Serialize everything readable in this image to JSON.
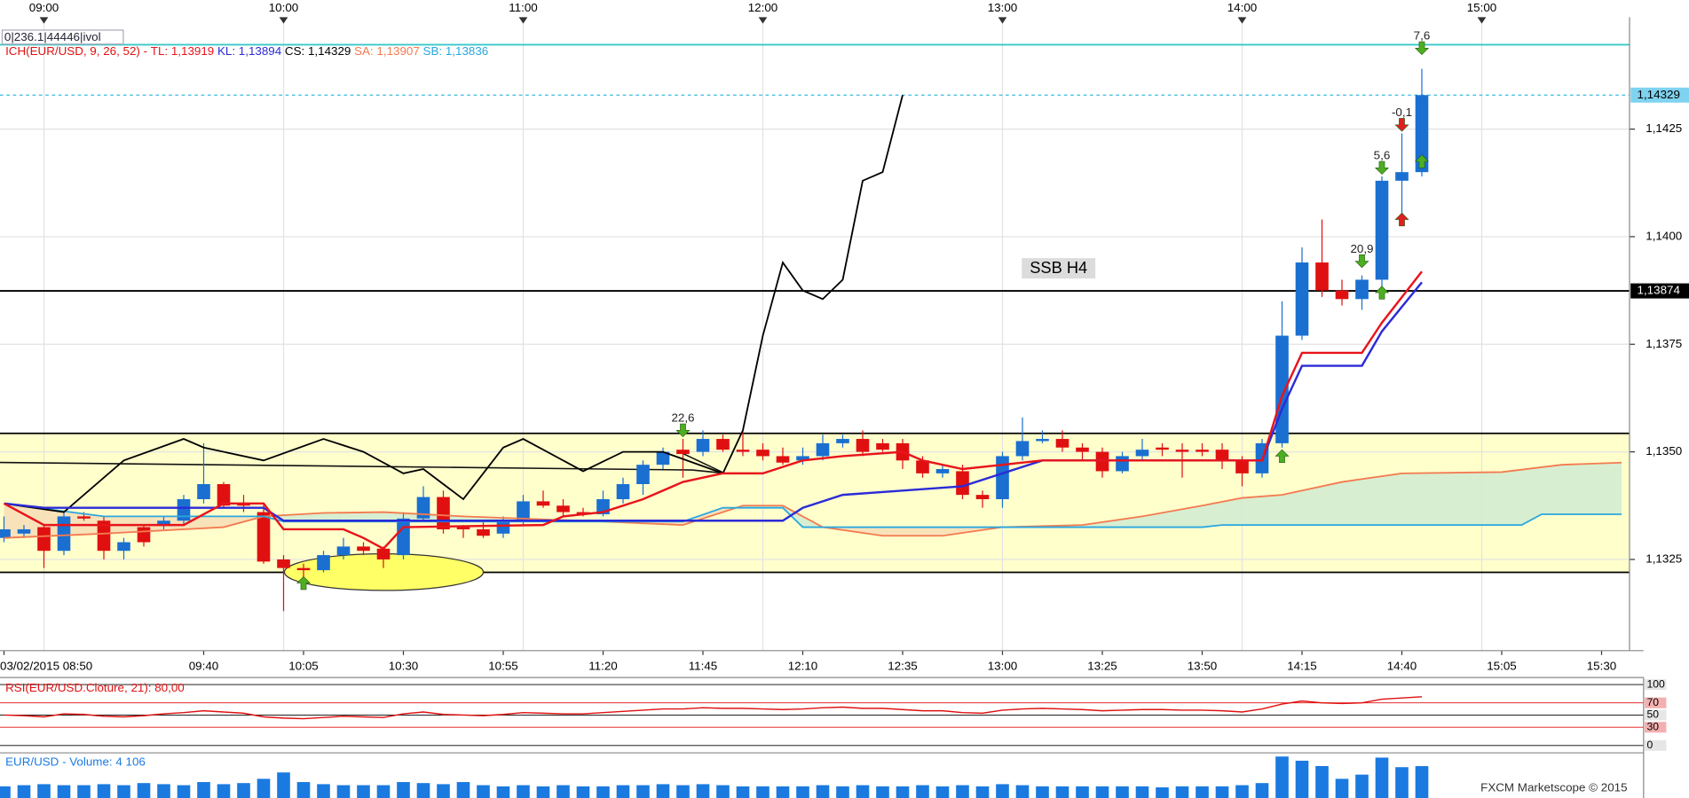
{
  "chart_data": [
    {
      "type": "candlestick",
      "overlay_text": "0|236.1|44446|ivol",
      "header": "ICH(EUR/USD, 9, 26, 52) -",
      "indicator_labels": [
        {
          "text": "TL: 1,13919",
          "color": "#e8141b"
        },
        {
          "text": "KL: 1,13894",
          "color": "#2b2bd8"
        },
        {
          "text": "CS: 1,14329",
          "color": "#000000"
        },
        {
          "text": "SA: 1,13907",
          "color": "#f47a50"
        },
        {
          "text": "SB: 1,13836",
          "color": "#2aa7e0"
        }
      ],
      "annotation": "SSB H4",
      "footer": "FXCM Marketscope © 2015",
      "xlim": [
        -0.2,
        81.4
      ],
      "xticks": [
        {
          "value": 0,
          "label": "03/02/2015 08:50"
        },
        {
          "value": 10,
          "label": "09:40"
        },
        {
          "value": 15,
          "label": "10:05"
        },
        {
          "value": 20,
          "label": "10:30"
        },
        {
          "value": 25,
          "label": "10:55"
        },
        {
          "value": 30,
          "label": "11:20"
        },
        {
          "value": 35,
          "label": "11:45"
        },
        {
          "value": 40,
          "label": "12:10"
        },
        {
          "value": 45,
          "label": "12:35"
        },
        {
          "value": 50,
          "label": "13:00"
        },
        {
          "value": 55,
          "label": "13:25"
        },
        {
          "value": 60,
          "label": "13:50"
        },
        {
          "value": 65,
          "label": "14:15"
        },
        {
          "value": 70,
          "label": "14:40"
        },
        {
          "value": 75,
          "label": "15:05"
        },
        {
          "value": 80,
          "label": "15:30"
        }
      ],
      "x2ticks": [
        {
          "value": 2,
          "label": "09:00"
        },
        {
          "value": 14,
          "label": "10:00"
        },
        {
          "value": 26,
          "label": "11:00"
        },
        {
          "value": 38,
          "label": "12:00"
        },
        {
          "value": 50,
          "label": "13:00"
        },
        {
          "value": 62,
          "label": "14:00"
        },
        {
          "value": 74,
          "label": "15:00"
        }
      ],
      "ylim": [
        1.13038,
        1.1451
      ],
      "yticks": [
        {
          "value": 1.1325,
          "label": "1,1325"
        },
        {
          "value": 1.135,
          "label": "1,1350"
        },
        {
          "value": 1.1375,
          "label": "1,1375"
        },
        {
          "value": 1.14,
          "label": "1,1400"
        },
        {
          "value": 1.1425,
          "label": "1,1425"
        }
      ],
      "grid": true,
      "up_color": "#1a6fd1",
      "down_color": "#e01010",
      "open": [
        1.133,
        1.1331,
        1.13325,
        1.1327,
        1.1335,
        1.1334,
        1.1327,
        1.13325,
        1.1333,
        1.1334,
        1.1339,
        1.13425,
        1.1338,
        1.1336,
        1.1325,
        1.1323,
        1.13225,
        1.1326,
        1.1328,
        1.13275,
        1.1326,
        1.13345,
        1.13395,
        1.13325,
        1.1332,
        1.1331,
        1.1334,
        1.13385,
        1.13375,
        1.1336,
        1.13355,
        1.1339,
        1.13425,
        1.1347,
        1.13505,
        1.135,
        1.1353,
        1.13505,
        1.13505,
        1.1349,
        1.1348,
        1.1349,
        1.1352,
        1.1353,
        1.1352,
        1.1352,
        1.1348,
        1.1345,
        1.13455,
        1.134,
        1.1339,
        1.1349,
        1.13525,
        1.1353,
        1.1351,
        1.135,
        1.13455,
        1.1349,
        1.1351,
        1.13505,
        1.13505,
        1.13505,
        1.1348,
        1.1345,
        1.1352,
        1.1377,
        1.1394,
        1.13875,
        1.13855,
        1.139,
        1.1413,
        1.1415
      ],
      "high": [
        1.1335,
        1.1333,
        1.1333,
        1.1336,
        1.1336,
        1.1335,
        1.133,
        1.1333,
        1.1335,
        1.134,
        1.1352,
        1.1343,
        1.134,
        1.1338,
        1.1326,
        1.1324,
        1.1327,
        1.133,
        1.1329,
        1.1328,
        1.1336,
        1.1342,
        1.1341,
        1.1333,
        1.1334,
        1.1335,
        1.134,
        1.1341,
        1.1339,
        1.1337,
        1.1341,
        1.1344,
        1.1348,
        1.1351,
        1.1353,
        1.1355,
        1.1354,
        1.1355,
        1.1352,
        1.1351,
        1.1351,
        1.1354,
        1.1354,
        1.1355,
        1.1353,
        1.1353,
        1.1349,
        1.1347,
        1.1347,
        1.1341,
        1.135,
        1.1358,
        1.1355,
        1.1355,
        1.1352,
        1.1351,
        1.135,
        1.1353,
        1.1352,
        1.1352,
        1.1352,
        1.1352,
        1.1349,
        1.1353,
        1.1385,
        1.13975,
        1.1404,
        1.139,
        1.1391,
        1.1414,
        1.1424,
        1.1439
      ],
      "low": [
        1.1329,
        1.133,
        1.1323,
        1.1326,
        1.1334,
        1.1325,
        1.1325,
        1.1328,
        1.1332,
        1.1333,
        1.1338,
        1.1337,
        1.1336,
        1.1324,
        1.1313,
        1.132,
        1.1322,
        1.1325,
        1.1326,
        1.1323,
        1.1325,
        1.1334,
        1.1331,
        1.133,
        1.133,
        1.133,
        1.1333,
        1.1337,
        1.1335,
        1.1335,
        1.1335,
        1.1338,
        1.134,
        1.1346,
        1.1344,
        1.1349,
        1.135,
        1.1349,
        1.1348,
        1.1347,
        1.1347,
        1.1348,
        1.1351,
        1.1349,
        1.135,
        1.1346,
        1.1344,
        1.1344,
        1.1339,
        1.1337,
        1.1337,
        1.1348,
        1.1352,
        1.135,
        1.1348,
        1.1344,
        1.1345,
        1.1348,
        1.1349,
        1.1344,
        1.1349,
        1.1346,
        1.1342,
        1.1344,
        1.1351,
        1.1376,
        1.1386,
        1.1384,
        1.1383,
        1.1388,
        1.1405,
        1.1414
      ],
      "close": [
        1.1332,
        1.1332,
        1.1327,
        1.1335,
        1.13345,
        1.1327,
        1.1329,
        1.1329,
        1.1334,
        1.1339,
        1.13425,
        1.13375,
        1.13375,
        1.13245,
        1.1323,
        1.13225,
        1.1326,
        1.1328,
        1.1327,
        1.1325,
        1.13345,
        1.13395,
        1.1332,
        1.1332,
        1.13305,
        1.1334,
        1.13385,
        1.13375,
        1.1336,
        1.13355,
        1.1339,
        1.13425,
        1.1347,
        1.135,
        1.13495,
        1.1353,
        1.13505,
        1.135,
        1.1349,
        1.13475,
        1.1349,
        1.1352,
        1.1353,
        1.135,
        1.13505,
        1.1348,
        1.1345,
        1.1346,
        1.134,
        1.1339,
        1.1349,
        1.13525,
        1.1353,
        1.1351,
        1.135,
        1.13455,
        1.1349,
        1.13505,
        1.13505,
        1.135,
        1.135,
        1.1348,
        1.1345,
        1.1352,
        1.1377,
        1.1394,
        1.13875,
        1.13855,
        1.139,
        1.1413,
        1.1415,
        1.14329
      ],
      "lines": [
        {
          "color": "#f47a50",
          "width": 1.5,
          "x": [
            0,
            5,
            11,
            13,
            16,
            19,
            23,
            30,
            34,
            37,
            39,
            41,
            44,
            47,
            50,
            54,
            57,
            60,
            62,
            64,
            67,
            70,
            75,
            78,
            81
          ],
          "values": [
            1.133,
            1.1331,
            1.13325,
            1.1335,
            1.13358,
            1.1336,
            1.1335,
            1.13338,
            1.1333,
            1.13375,
            1.13375,
            1.13325,
            1.13305,
            1.13305,
            1.13325,
            1.1333,
            1.1335,
            1.13375,
            1.13393,
            1.134,
            1.1343,
            1.1345,
            1.13453,
            1.1347,
            1.13475
          ]
        },
        {
          "color": "#2aa7e0",
          "width": 1.5,
          "x": [
            0,
            5,
            13,
            14,
            34,
            36,
            39,
            40,
            60,
            61,
            76,
            77,
            81
          ],
          "values": [
            1.1338,
            1.1335,
            1.1335,
            1.13338,
            1.13338,
            1.1337,
            1.1337,
            1.13325,
            1.13325,
            1.1333,
            1.1333,
            1.13355,
            1.13355
          ]
        },
        {
          "color": "#000000",
          "width": 1.5,
          "x": [
            0,
            3,
            6,
            9,
            10,
            13,
            16,
            18,
            20,
            21,
            23,
            25,
            26,
            29,
            31,
            33,
            36,
            37,
            38,
            39,
            40,
            41,
            42,
            43,
            44,
            45
          ],
          "values": [
            1.1338,
            1.1336,
            1.1348,
            1.1353,
            1.1351,
            1.1348,
            1.1353,
            1.135,
            1.1345,
            1.1346,
            1.1339,
            1.1351,
            1.1353,
            1.13455,
            1.135,
            1.135,
            1.1345,
            1.1355,
            1.1377,
            1.1394,
            1.13875,
            1.13855,
            1.139,
            1.1413,
            1.1415,
            1.14329
          ]
        },
        {
          "color": "#2b2bd8",
          "width": 2,
          "x": [
            0,
            2,
            13,
            14,
            22,
            39,
            40,
            42,
            45,
            48,
            50,
            52,
            62,
            63,
            64,
            65,
            68,
            69,
            71
          ],
          "values": [
            1.1338,
            1.1337,
            1.1337,
            1.1334,
            1.1334,
            1.1334,
            1.1337,
            1.134,
            1.1341,
            1.1342,
            1.1345,
            1.1348,
            1.1348,
            1.1348,
            1.136,
            1.137,
            1.137,
            1.1378,
            1.13894
          ]
        },
        {
          "color": "#e8141b",
          "width": 2,
          "x": [
            0,
            2,
            9,
            11,
            13,
            14,
            17,
            18,
            19,
            20,
            27,
            28,
            30,
            32,
            34,
            36,
            38,
            40,
            42,
            45,
            46,
            48,
            50,
            52,
            63,
            64,
            65,
            68,
            69,
            71
          ],
          "values": [
            1.1338,
            1.1333,
            1.1333,
            1.1338,
            1.1338,
            1.1332,
            1.1332,
            1.133,
            1.13275,
            1.13325,
            1.1333,
            1.1335,
            1.1336,
            1.1339,
            1.1343,
            1.1345,
            1.1345,
            1.1348,
            1.1349,
            1.135,
            1.1348,
            1.1346,
            1.1347,
            1.1348,
            1.1348,
            1.1363,
            1.1373,
            1.1373,
            1.138,
            1.13919
          ]
        }
      ],
      "cloud_colors": {
        "up": "#d4ecd0",
        "down": "#f7dfb7"
      },
      "zone": {
        "from": 1.1322,
        "to": 1.13543,
        "color": "#ffffcc",
        "border": "#000000"
      },
      "levels": [
        {
          "value": 1.13874,
          "label": "1,13874",
          "color": "#000000"
        },
        {
          "value": 1.14446,
          "color": "#38c8c8"
        }
      ],
      "last_price": {
        "value": 1.14329,
        "label": "1,14329",
        "color": "#38b8e0"
      },
      "signals": [
        {
          "x": 15,
          "price": 1.13195,
          "dir": "up",
          "color": "#4caf22"
        },
        {
          "x": 34,
          "price": 1.1355,
          "dir": "down",
          "color": "#4caf22",
          "label": "22,6"
        },
        {
          "x": 64,
          "price": 1.1349,
          "dir": "up",
          "color": "#4caf22"
        },
        {
          "x": 68,
          "price": 1.13943,
          "dir": "down",
          "color": "#4caf22",
          "label": "20,9"
        },
        {
          "x": 69,
          "price": 1.1387,
          "dir": "up",
          "color": "#4caf22"
        },
        {
          "x": 69,
          "price": 1.1416,
          "dir": "down",
          "color": "#4caf22",
          "label": "5,6"
        },
        {
          "x": 70,
          "price": 1.1426,
          "dir": "down",
          "color": "#e02020",
          "label": "-0,1"
        },
        {
          "x": 70,
          "price": 1.1404,
          "dir": "up",
          "color": "#e02020"
        },
        {
          "x": 71,
          "price": 1.14438,
          "dir": "down",
          "color": "#4caf22",
          "label": "7,6"
        },
        {
          "x": 71,
          "price": 1.14175,
          "dir": "up",
          "color": "#4caf22"
        }
      ]
    },
    {
      "type": "line",
      "header": "RSI(EUR/USD.Cloture, 21): 80,00",
      "color": "#e01010",
      "ylim": [
        -12,
        108
      ],
      "yticks": [
        0,
        30,
        50,
        70,
        100
      ],
      "tick_colors": [
        "#000000",
        "#e01010",
        "#000000",
        "#e01010",
        "#000000"
      ],
      "values": [
        50,
        49,
        47,
        52,
        51,
        48,
        47,
        49,
        52,
        54,
        57,
        55,
        53,
        47,
        45,
        44,
        46,
        48,
        47,
        46,
        52,
        55,
        51,
        50,
        49,
        51,
        54,
        53,
        52,
        52,
        54,
        56,
        58,
        60,
        60,
        62,
        61,
        61,
        60,
        59,
        60,
        62,
        63,
        61,
        61,
        59,
        57,
        57,
        54,
        53,
        58,
        60,
        61,
        60,
        59,
        57,
        58,
        59,
        59,
        58,
        58,
        57,
        55,
        60,
        68,
        73,
        70,
        69,
        70,
        76,
        78,
        80
      ]
    },
    {
      "type": "bar",
      "header": "EUR/USD - Volume: 4 106",
      "color": "#1a7ae0",
      "ylim": [
        0,
        5400
      ],
      "values": [
        1500,
        1650,
        1780,
        1650,
        1650,
        1780,
        1650,
        1920,
        1780,
        1650,
        2050,
        1780,
        1920,
        2470,
        3290,
        2050,
        1780,
        1650,
        1650,
        1650,
        2050,
        1920,
        1780,
        2050,
        1650,
        1500,
        1650,
        1500,
        1650,
        1500,
        1500,
        1650,
        1650,
        1780,
        1650,
        1780,
        1650,
        1500,
        1500,
        1500,
        1500,
        1650,
        1500,
        1650,
        1500,
        1500,
        1650,
        1500,
        1650,
        1500,
        1780,
        1650,
        1500,
        1500,
        1500,
        1500,
        1500,
        1500,
        1370,
        1500,
        1500,
        1500,
        1650,
        1920,
        5340,
        4800,
        4110,
        2470,
        3010,
        5200,
        3970,
        4106
      ]
    }
  ]
}
